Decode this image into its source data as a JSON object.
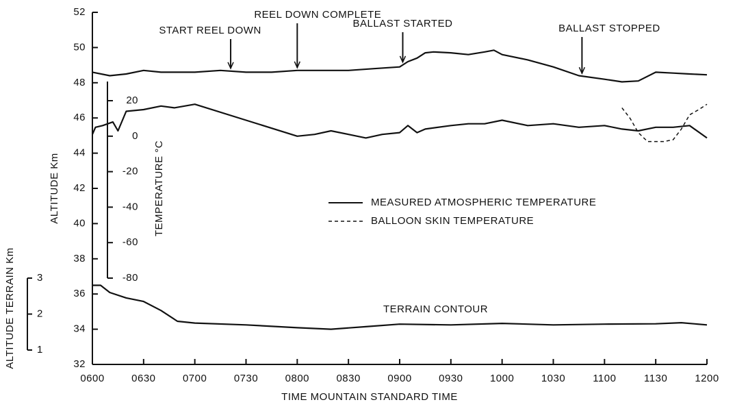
{
  "chart_data": {
    "type": "line",
    "xlabel": "TIME MOUNTAIN STANDARD TIME",
    "ylabel": "ALTITUDE Km",
    "y2label": "TEMPERATURE °C",
    "y3label": "ALTITUDE TERRAIN Km",
    "xlim": [
      6,
      12
    ],
    "xticks": [
      {
        "value": 6,
        "label": "0600"
      },
      {
        "value": 6.5,
        "label": "0630"
      },
      {
        "value": 7,
        "label": "0700"
      },
      {
        "value": 7.5,
        "label": "0730"
      },
      {
        "value": 8,
        "label": "0800"
      },
      {
        "value": 8.5,
        "label": "0830"
      },
      {
        "value": 9,
        "label": "0900"
      },
      {
        "value": 9.5,
        "label": "0930"
      },
      {
        "value": 10,
        "label": "1000"
      },
      {
        "value": 10.5,
        "label": "1030"
      },
      {
        "value": 11,
        "label": "1100"
      },
      {
        "value": 11.5,
        "label": "1130"
      },
      {
        "value": 12,
        "label": "1200"
      }
    ],
    "ylim": [
      32,
      52
    ],
    "yticks": [
      32,
      34,
      36,
      38,
      40,
      42,
      44,
      46,
      48,
      50,
      52
    ],
    "y2lim": [
      -80,
      20
    ],
    "y2ticks": [
      20,
      0,
      -20,
      -40,
      -60,
      -80
    ],
    "y3lim": [
      1,
      3
    ],
    "y3ticks": [
      3,
      2,
      1
    ],
    "annotations": [
      {
        "text": "START REEL DOWN",
        "x": 7.35
      },
      {
        "text": "REEL DOWN COMPLETE",
        "x": 8
      },
      {
        "text": "BALLAST STARTED",
        "x": 9.03
      },
      {
        "text": "BALLAST STOPPED",
        "x": 10.78
      }
    ],
    "series": [
      {
        "color": "#111",
        "axis": "y",
        "x": [
          6,
          6.17,
          6.33,
          6.5,
          6.67,
          6.83,
          7,
          7.25,
          7.5,
          7.75,
          8,
          8.25,
          8.5,
          8.75,
          9,
          9.08,
          9.17,
          9.25,
          9.33,
          9.5,
          9.67,
          9.83,
          9.92,
          10,
          10.25,
          10.5,
          10.75,
          11,
          11.17,
          11.33,
          11.5,
          11.67,
          11.83,
          12
        ],
        "values": [
          48.6,
          48.4,
          48.5,
          48.7,
          48.6,
          48.6,
          48.6,
          48.7,
          48.6,
          48.6,
          48.7,
          48.7,
          48.7,
          48.8,
          48.9,
          49.2,
          49.4,
          49.7,
          49.75,
          49.7,
          49.6,
          49.75,
          49.85,
          49.6,
          49.3,
          48.9,
          48.4,
          48.2,
          48.05,
          48.1,
          48.6,
          48.55,
          48.5,
          48.45
        ]
      },
      {
        "name": "MEASURED ATMOSPHERIC TEMPERATURE",
        "color": "#111",
        "axis": "y2",
        "dash": false,
        "x": [
          6,
          6.03,
          6.1,
          6.2,
          6.25,
          6.33,
          6.5,
          6.67,
          6.8,
          7,
          7.5,
          8,
          8.17,
          8.33,
          8.5,
          8.67,
          8.83,
          9,
          9.08,
          9.17,
          9.25,
          9.5,
          9.67,
          9.83,
          10,
          10.25,
          10.5,
          10.75,
          11,
          11.17,
          11.33,
          11.5,
          11.67,
          11.83,
          12
        ],
        "values": [
          1,
          5,
          6,
          8,
          3,
          14,
          15,
          17,
          16,
          18,
          9,
          0,
          1,
          3,
          1,
          -1,
          1,
          2,
          6,
          2,
          4,
          6,
          7,
          7,
          9,
          6,
          7,
          5,
          6,
          4,
          3,
          5,
          5,
          6,
          -1
        ]
      },
      {
        "name": "BALLOON SKIN TEMPERATURE",
        "color": "#111",
        "axis": "y2",
        "dash": true,
        "x": [
          11.17,
          11.25,
          11.33,
          11.42,
          11.5,
          11.58,
          11.67,
          11.75,
          11.83,
          11.92,
          12
        ],
        "values": [
          16,
          10,
          2,
          -3,
          -3,
          -3,
          -2,
          4,
          12,
          15,
          18
        ]
      },
      {
        "name": "TERRAIN CONTOUR",
        "color": "#111",
        "axis": "y3",
        "x": [
          6,
          6.08,
          6.17,
          6.33,
          6.5,
          6.67,
          6.83,
          7,
          7.5,
          8,
          8.33,
          8.67,
          9,
          9.5,
          10,
          10.5,
          11,
          11.5,
          11.75,
          12
        ],
        "values": [
          2.8,
          2.8,
          2.6,
          2.45,
          2.35,
          2.1,
          1.8,
          1.75,
          1.7,
          1.62,
          1.58,
          1.65,
          1.72,
          1.7,
          1.74,
          1.7,
          1.72,
          1.73,
          1.76,
          1.7
        ]
      }
    ]
  }
}
